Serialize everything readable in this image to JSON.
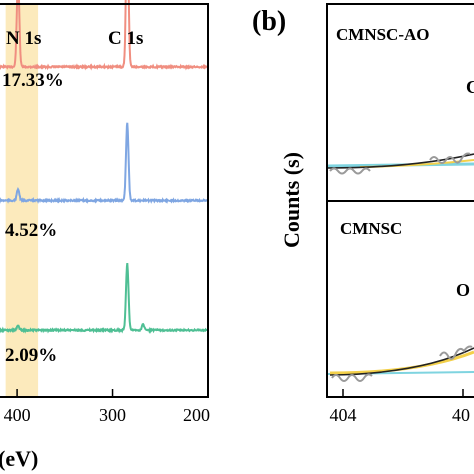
{
  "chart_data": [
    {
      "type": "line",
      "panel_label": "",
      "xlabel": "(eV)",
      "ylabel": "",
      "xlim": [
        420,
        200
      ],
      "x_ticks": [
        400,
        300,
        200
      ],
      "x_tick_labels": [
        "400",
        "300",
        "200"
      ],
      "peak_labels": [
        {
          "text": "N 1s",
          "x": 399
        },
        {
          "text": "C 1s",
          "x": 284.6
        }
      ],
      "highlight_band": {
        "x": [
          412,
          378
        ],
        "color": "#fbe6b0"
      },
      "series": [
        {
          "color": "#f08e80",
          "offset": 0.84,
          "peaks": [
            {
              "x": 399,
              "height": 0.63
            },
            {
              "x": 284.6,
              "height": 1.0
            }
          ],
          "annotation": "17.33%"
        },
        {
          "color": "#7fa6e2",
          "offset": 0.5,
          "peaks": [
            {
              "x": 399,
              "height": 0.08
            },
            {
              "x": 284.6,
              "height": 0.55
            }
          ],
          "annotation": "4.52%"
        },
        {
          "color": "#4fbf94",
          "offset": 0.17,
          "peaks": [
            {
              "x": 399,
              "height": 0.03
            },
            {
              "x": 284.6,
              "height": 0.47
            },
            {
              "x": 268,
              "height": 0.04
            }
          ],
          "annotation": "2.09%"
        }
      ]
    },
    {
      "type": "line",
      "panel_label": "(b)",
      "ylabel": "Counts (s)",
      "xlim": [
        404,
        400
      ],
      "x_tick_labels": [
        "404",
        "40"
      ],
      "panels": [
        {
          "name": "CMNSC-AO",
          "letter": "C"
        },
        {
          "name": "CMNSC",
          "letter": "O"
        }
      ]
    }
  ]
}
